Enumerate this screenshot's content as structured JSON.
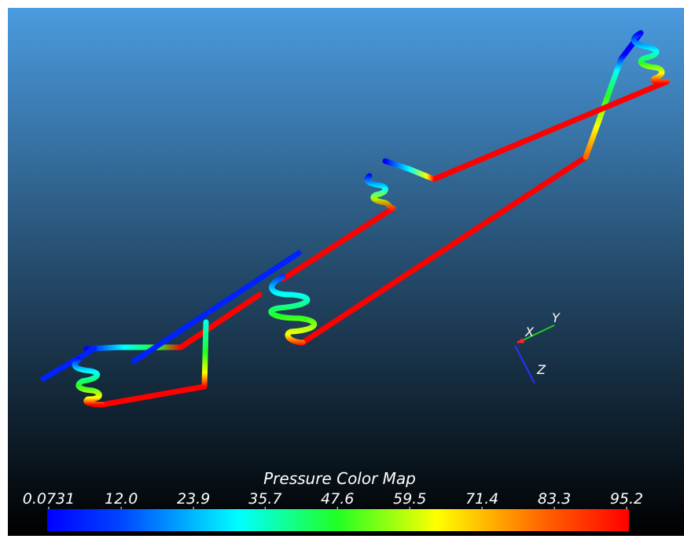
{
  "colorbar": {
    "title": "Pressure Color Map",
    "ticks": [
      {
        "value": 0.0731,
        "label": "0.0731"
      },
      {
        "value": 12,
        "label": "12.0"
      },
      {
        "value": 23.9,
        "label": "23.9"
      },
      {
        "value": 35.7,
        "label": "35.7"
      },
      {
        "value": 47.6,
        "label": "47.6"
      },
      {
        "value": 59.5,
        "label": "59.5"
      },
      {
        "value": 71.4,
        "label": "71.4"
      },
      {
        "value": 83.3,
        "label": "83.3"
      },
      {
        "value": 95.2,
        "label": "95.2"
      }
    ]
  },
  "axes": {
    "x": "X",
    "y": "Y",
    "z": "Z"
  }
}
